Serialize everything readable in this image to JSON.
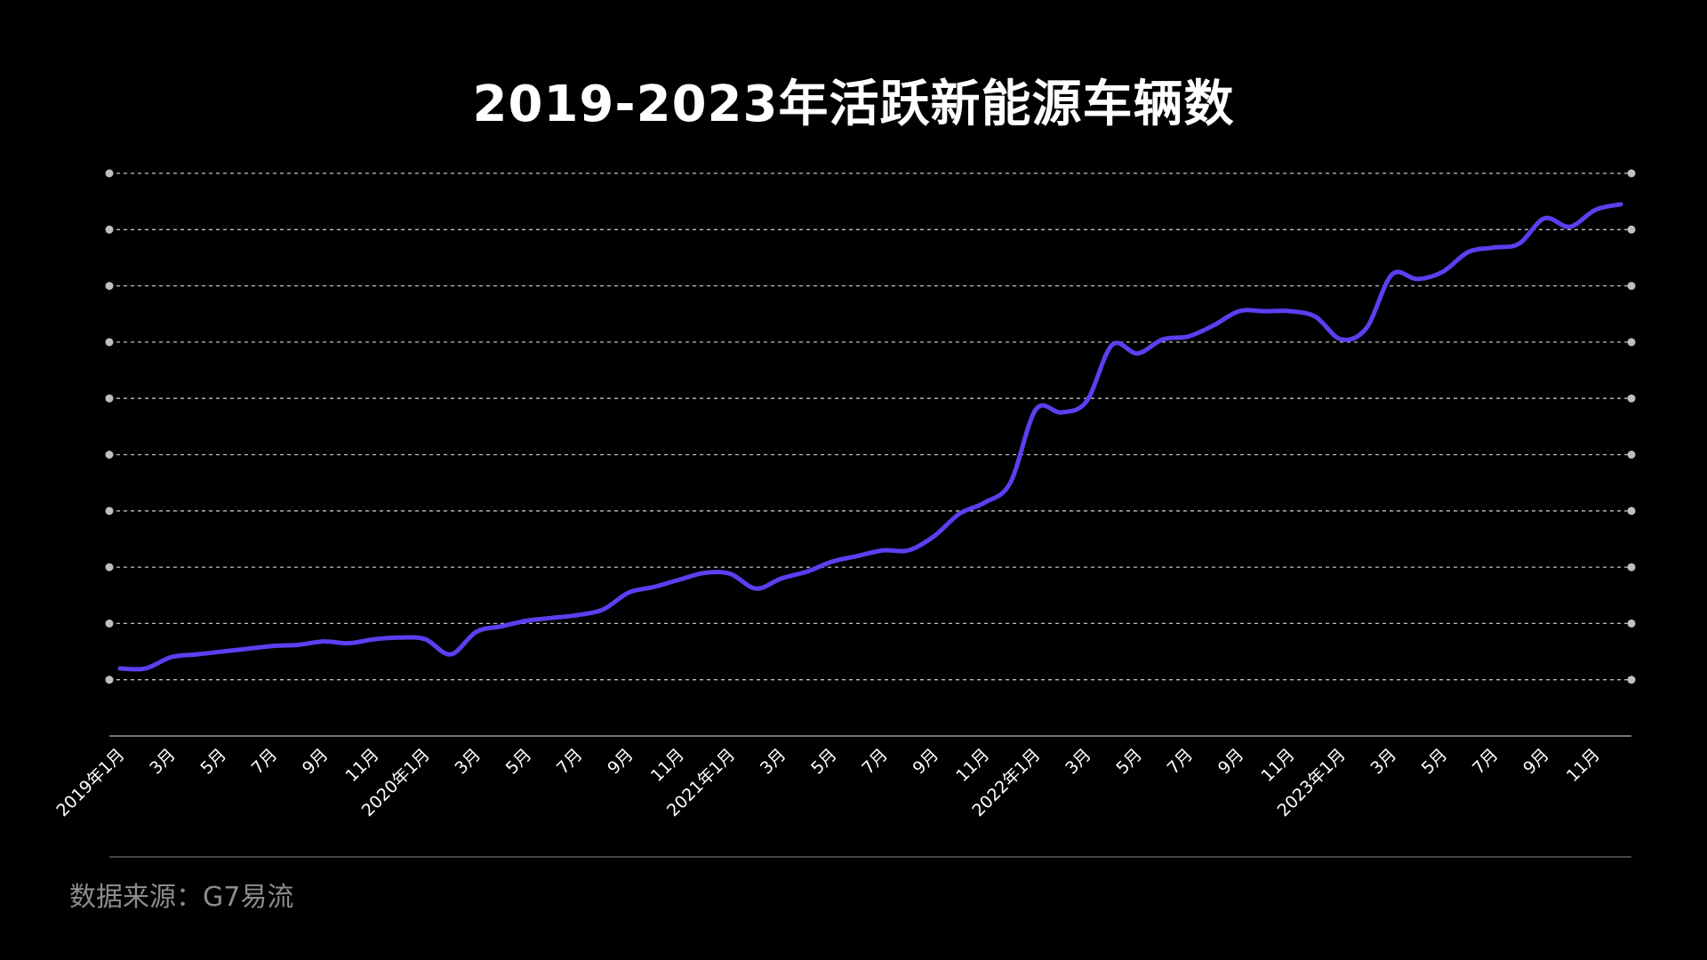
{
  "colors": {
    "background": "#000000",
    "line": "#5b3ff0",
    "grid": "#bfbfbf",
    "text": "#ffffff",
    "muted": "#8c8c8c"
  },
  "source_note": "数据来源：G7易流",
  "chart_data": {
    "type": "line",
    "title": "2019-2023年活跃新能源车辆数",
    "xlabel": "",
    "ylabel": "",
    "y_tick_labels_shown": false,
    "grid": true,
    "ylim": [
      0,
      10
    ],
    "x_tick_labels": [
      "2019年1月",
      "3月",
      "5月",
      "7月",
      "9月",
      "11月",
      "2020年1月",
      "3月",
      "5月",
      "7月",
      "9月",
      "11月",
      "2021年1月",
      "3月",
      "5月",
      "7月",
      "9月",
      "11月",
      "2022年1月",
      "3月",
      "5月",
      "7月",
      "9月",
      "11月",
      "2023年1月",
      "3月",
      "5月",
      "7月",
      "9月",
      "11月"
    ],
    "x": [
      "2019-01",
      "2019-02",
      "2019-03",
      "2019-04",
      "2019-05",
      "2019-06",
      "2019-07",
      "2019-08",
      "2019-09",
      "2019-10",
      "2019-11",
      "2019-12",
      "2020-01",
      "2020-02",
      "2020-03",
      "2020-04",
      "2020-05",
      "2020-06",
      "2020-07",
      "2020-08",
      "2020-09",
      "2020-10",
      "2020-11",
      "2020-12",
      "2021-01",
      "2021-02",
      "2021-03",
      "2021-04",
      "2021-05",
      "2021-06",
      "2021-07",
      "2021-08",
      "2021-09",
      "2021-10",
      "2021-11",
      "2021-12",
      "2022-01",
      "2022-02",
      "2022-03",
      "2022-04",
      "2022-05",
      "2022-06",
      "2022-07",
      "2022-08",
      "2022-09",
      "2022-10",
      "2022-11",
      "2022-12",
      "2023-01",
      "2023-02",
      "2023-03",
      "2023-04",
      "2023-05",
      "2023-06",
      "2023-07",
      "2023-08",
      "2023-09",
      "2023-10",
      "2023-11",
      "2023-12"
    ],
    "series": [
      {
        "values": [
          1.2,
          1.2,
          1.4,
          1.45,
          1.5,
          1.55,
          1.6,
          1.62,
          1.68,
          1.65,
          1.72,
          1.75,
          1.72,
          1.45,
          1.85,
          1.95,
          2.05,
          2.1,
          2.15,
          2.25,
          2.55,
          2.65,
          2.78,
          2.9,
          2.88,
          2.62,
          2.8,
          2.92,
          3.1,
          3.2,
          3.3,
          3.3,
          3.55,
          3.95,
          4.15,
          4.5,
          5.8,
          5.75,
          5.95,
          6.95,
          6.8,
          7.05,
          7.1,
          7.3,
          7.55,
          7.55,
          7.55,
          7.45,
          7.05,
          7.25,
          8.2,
          8.12,
          8.25,
          8.6,
          8.68,
          8.75,
          9.2,
          9.05,
          9.35,
          9.45
        ]
      }
    ]
  }
}
